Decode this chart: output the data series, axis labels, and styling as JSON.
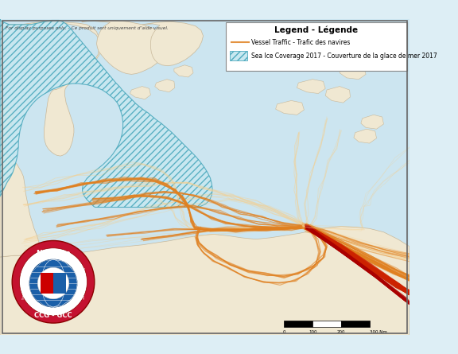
{
  "title": "Legend - Légende",
  "disclaimer": "For display purposes only. - Ce produit sert uniquement d’aide visuel.",
  "legend_vessel": "Vessel Traffic - Trafic des navires",
  "legend_ice": "Sea Ice Coverage 2017 - Couverture de la glace de mer 2017",
  "bg_color": "#ddeef5",
  "land_color": "#f0e8d2",
  "land_edge": "#c8b89a",
  "ice_fill": "#c8e8f0",
  "ice_edge": "#4eaabe",
  "vessel_sparse": "#f5d090",
  "vessel_medium": "#e08020",
  "vessel_dense": "#cc2200",
  "vessel_vdense": "#aa0000",
  "water_color": "#cce5f0",
  "fig_bg": "#ddeef5",
  "legend_bg": "#ffffff",
  "scale_ticks": [
    "0",
    "100",
    "200",
    "300 Nm"
  ]
}
